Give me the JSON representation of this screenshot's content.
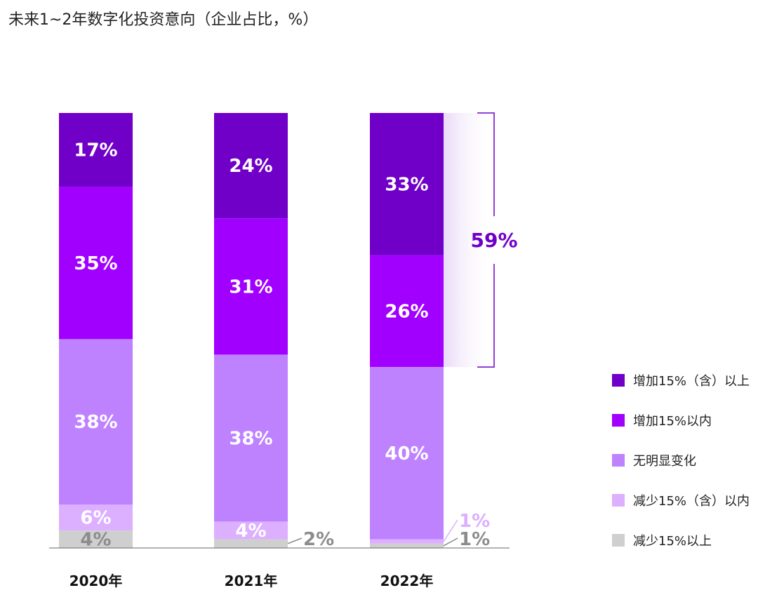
{
  "chart_data": {
    "type": "bar",
    "stacked": true,
    "title": "未来1~2年数字化投资意向（企业占比，%）",
    "categories": [
      "2020年",
      "2021年",
      "2022年"
    ],
    "series": [
      {
        "name": "增加15%（含）以上",
        "color": "#7000C8",
        "values": [
          17,
          24,
          33
        ],
        "labels": [
          "17%",
          "24%",
          "33%"
        ]
      },
      {
        "name": "增加15%以内",
        "color": "#A100FF",
        "values": [
          35,
          31,
          26
        ],
        "labels": [
          "35%",
          "31%",
          "26%"
        ]
      },
      {
        "name": "无明显变化",
        "color": "#BE82FF",
        "values": [
          38,
          38,
          40
        ],
        "labels": [
          "38%",
          "38%",
          "40%"
        ]
      },
      {
        "name": "减少15%（含）以内",
        "color": "#DCAFFF",
        "values": [
          6,
          4,
          1
        ],
        "labels": [
          "6%",
          "4%",
          "1%"
        ]
      },
      {
        "name": "减少15%以上",
        "color": "#CFCFCF",
        "values": [
          4,
          2,
          1
        ],
        "labels": [
          "4%",
          "2%",
          "1%"
        ]
      }
    ],
    "annotation": {
      "category": "2022年",
      "series": [
        "增加15%（含）以上",
        "增加15%以内"
      ],
      "label": "59%",
      "color": "#7000C8"
    },
    "legend_position": "right",
    "grid": false
  }
}
